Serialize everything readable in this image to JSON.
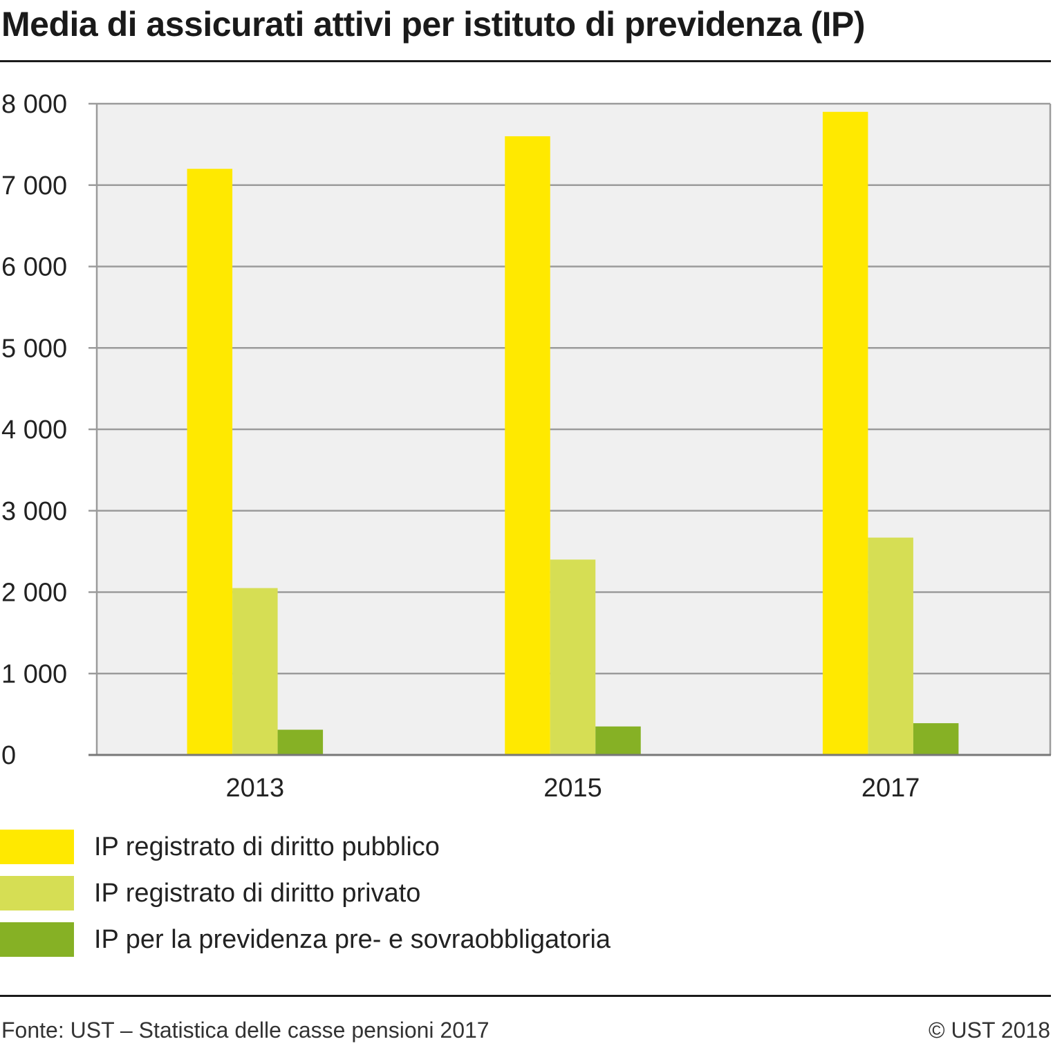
{
  "title": "Media di assicurati attivi per istituto di previdenza (IP)",
  "footer": {
    "source": "Fonte: UST – Statistica delle casse pensioni 2017",
    "copyright": "© UST 2018"
  },
  "chart_data": {
    "type": "bar",
    "categories": [
      "2013",
      "2015",
      "2017"
    ],
    "series": [
      {
        "name": "IP registrato di diritto pubblico",
        "color": "#ffe900",
        "values": [
          7200,
          7600,
          7900
        ]
      },
      {
        "name": "IP registrato di diritto privato",
        "color": "#d6de54",
        "values": [
          2050,
          2400,
          2670
        ]
      },
      {
        "name": "IP per la previdenza pre- e sovraobbligatoria",
        "color": "#86b125",
        "values": [
          310,
          350,
          390
        ]
      }
    ],
    "yticks": [
      "0",
      "1 000",
      "2 000",
      "3 000",
      "4 000",
      "5 000",
      "6 000",
      "7 000",
      "8 000"
    ],
    "ylim": [
      0,
      8000
    ],
    "grid": true,
    "legend_position": "bottom-left",
    "plot_background": "#f0f0f0",
    "grid_color": "#9b9b9b"
  }
}
